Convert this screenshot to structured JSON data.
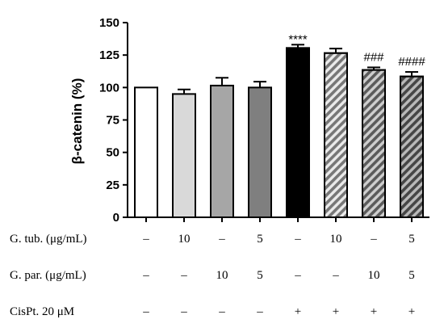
{
  "chart_data": {
    "type": "bar",
    "ylabel": "β-catenin (%)",
    "ylim": [
      0,
      150
    ],
    "yticks": [
      0,
      25,
      50,
      75,
      100,
      125,
      150
    ],
    "grid": false,
    "values": [
      100,
      95,
      101.5,
      100,
      130.5,
      126.5,
      113.5,
      108.5
    ],
    "errors": [
      0,
      3.5,
      6,
      4.5,
      2.5,
      3.5,
      2,
      3.5
    ],
    "fills": [
      "#ffffff",
      "#d9d9d9",
      "#a6a6a6",
      "#7f7f7f",
      "#000000",
      "#d9d9d9",
      "#a6a6a6",
      "#7f7f7f"
    ],
    "hatched": [
      false,
      false,
      false,
      false,
      false,
      true,
      true,
      true
    ],
    "annotations": [
      "",
      "",
      "",
      "",
      "****",
      "",
      "###",
      "####"
    ]
  },
  "conditions": [
    {
      "label": "G. tub. (μg/mL)",
      "values": [
        "–",
        "10",
        "–",
        "5",
        "–",
        "10",
        "–",
        "5"
      ]
    },
    {
      "label": "G. par. (μg/mL)",
      "values": [
        "–",
        "–",
        "10",
        "5",
        "–",
        "–",
        "10",
        "5"
      ]
    },
    {
      "label": "CisPt. 20 μM",
      "values": [
        "–",
        "–",
        "–",
        "–",
        "+",
        "+",
        "+",
        "+"
      ]
    }
  ]
}
